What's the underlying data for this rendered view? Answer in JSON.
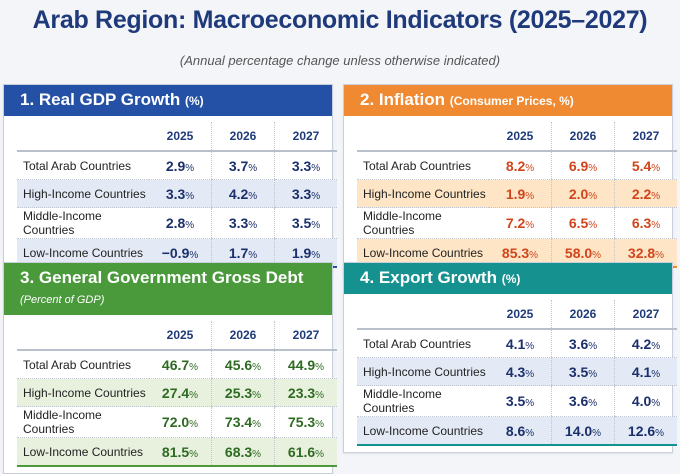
{
  "title": "Arab Region: Macroeconomic Indicators (2025–2027)",
  "subtitle": "(Annual percentage change unless otherwise indicated)",
  "years": [
    "2025",
    "2026",
    "2027"
  ],
  "panels": [
    {
      "title": "1. Real GDP Growth",
      "title_suffix": "(%)",
      "suffix_italic": false,
      "header_color": "#2451a6",
      "value_color": "#1b2f6b",
      "stripe_color": "#e3eaf5",
      "unit": "%",
      "rows": [
        {
          "label": "Total Arab Countries",
          "values": [
            "2.9",
            "3.7",
            "3.3"
          ]
        },
        {
          "label": "High-Income Countries",
          "values": [
            "3.3",
            "4.2",
            "3.3"
          ]
        },
        {
          "label": "Middle-Income Countries",
          "values": [
            "2.8",
            "3.3",
            "3.5"
          ]
        },
        {
          "label": "Low-Income Countries",
          "values": [
            "−0.9",
            "1.7",
            "1.9"
          ]
        }
      ]
    },
    {
      "title": "2. Inflation",
      "title_suffix": "(Consumer Prices, %)",
      "suffix_italic": false,
      "header_color": "#f08a32",
      "value_color": "#d0451b",
      "stripe_color": "#fde5c6",
      "unit": "%",
      "rows": [
        {
          "label": "Total Arab Countries",
          "values": [
            "8.2",
            "6.9",
            "5.4"
          ]
        },
        {
          "label": "High-Income Countries",
          "values": [
            "1.9",
            "2.0",
            "2.2"
          ]
        },
        {
          "label": "Middle-Income Countries",
          "values": [
            "7.2",
            "6.5",
            "6.3"
          ]
        },
        {
          "label": "Low-Income Countries",
          "values": [
            "85.3",
            "58.0",
            "32.8"
          ]
        }
      ]
    },
    {
      "title": "3. General Government Gross Debt",
      "title_suffix": "(Percent of GDP)",
      "suffix_italic": true,
      "header_color": "#4a9a3c",
      "value_color": "#2e6b22",
      "stripe_color": "#e8f1de",
      "unit": "%",
      "rows": [
        {
          "label": "Total Arab Countries",
          "values": [
            "46.7",
            "45.6",
            "44.9"
          ]
        },
        {
          "label": "High-Income Countries",
          "values": [
            "27.4",
            "25.3",
            "23.3"
          ]
        },
        {
          "label": "Middle-Income Countries",
          "values": [
            "72.0",
            "73.4",
            "75.3"
          ]
        },
        {
          "label": "Low-Income Countries",
          "values": [
            "81.5",
            "68.3",
            "61.6"
          ]
        }
      ]
    },
    {
      "title": "4. Export Growth",
      "title_suffix": "(%)",
      "suffix_italic": false,
      "header_color": "#15918f",
      "value_color": "#1b2f6b",
      "stripe_color": "#e3eaf5",
      "unit": "%",
      "rows": [
        {
          "label": "Total Arab Countries",
          "values": [
            "4.1",
            "3.6",
            "4.2"
          ]
        },
        {
          "label": "High-Income Countries",
          "values": [
            "4.3",
            "3.5",
            "4.1"
          ]
        },
        {
          "label": "Middle-Income Countries",
          "values": [
            "3.5",
            "3.6",
            "4.0"
          ]
        },
        {
          "label": "Low-Income Countries",
          "values": [
            "8.6",
            "14.0",
            "12.6"
          ]
        }
      ]
    }
  ]
}
